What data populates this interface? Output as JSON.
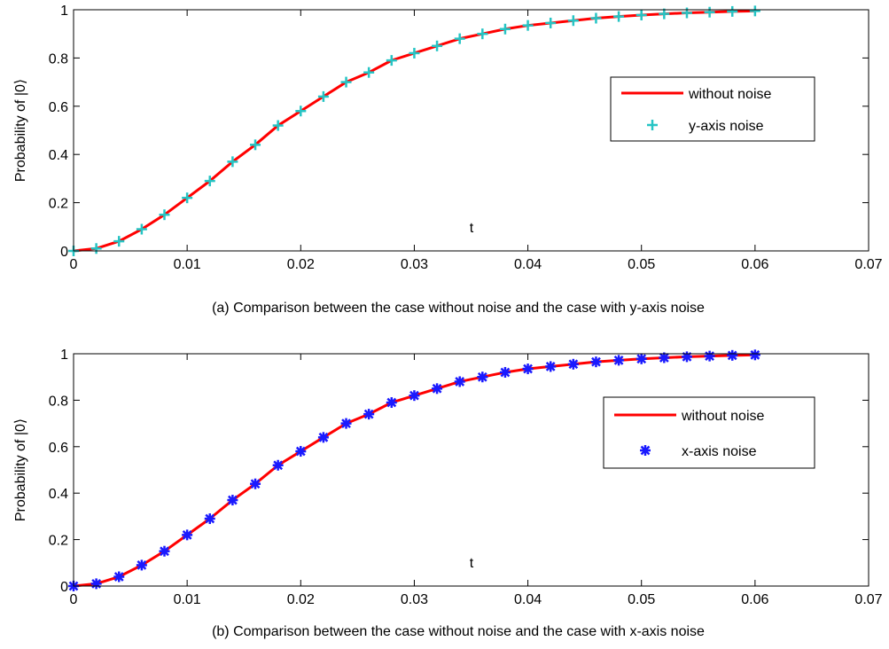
{
  "chart_data": [
    {
      "type": "line",
      "caption": "(a) Comparison between the case without noise and the case with y-axis noise",
      "xlabel": "t",
      "ylabel": "Probability of |0⟩",
      "xlim": [
        0,
        0.07
      ],
      "ylim": [
        0,
        1
      ],
      "x_ticks": [
        "0",
        "0.01",
        "0.02",
        "0.03",
        "0.04",
        "0.05",
        "0.06",
        "0.07"
      ],
      "y_ticks": [
        "0",
        "0.2",
        "0.4",
        "0.6",
        "0.8",
        "1"
      ],
      "grid": false,
      "legend_position": "right",
      "series": [
        {
          "name": "without noise",
          "style": "line",
          "color": "#ff0000",
          "x": [
            0,
            0.002,
            0.004,
            0.006,
            0.008,
            0.01,
            0.012,
            0.014,
            0.016,
            0.018,
            0.02,
            0.022,
            0.024,
            0.026,
            0.028,
            0.03,
            0.032,
            0.034,
            0.036,
            0.038,
            0.04,
            0.042,
            0.044,
            0.046,
            0.048,
            0.05,
            0.052,
            0.054,
            0.056,
            0.058,
            0.06
          ],
          "y": [
            0,
            0.01,
            0.04,
            0.09,
            0.15,
            0.22,
            0.29,
            0.37,
            0.44,
            0.52,
            0.58,
            0.64,
            0.7,
            0.74,
            0.79,
            0.82,
            0.85,
            0.88,
            0.9,
            0.92,
            0.935,
            0.945,
            0.955,
            0.965,
            0.972,
            0.978,
            0.983,
            0.987,
            0.99,
            0.993,
            0.995
          ]
        },
        {
          "name": "y-axis noise",
          "style": "marker-plus",
          "color": "#26c4c4",
          "x": [
            0,
            0.002,
            0.004,
            0.006,
            0.008,
            0.01,
            0.012,
            0.014,
            0.016,
            0.018,
            0.02,
            0.022,
            0.024,
            0.026,
            0.028,
            0.03,
            0.032,
            0.034,
            0.036,
            0.038,
            0.04,
            0.042,
            0.044,
            0.046,
            0.048,
            0.05,
            0.052,
            0.054,
            0.056,
            0.058,
            0.06
          ],
          "y": [
            0,
            0.01,
            0.04,
            0.09,
            0.15,
            0.22,
            0.29,
            0.37,
            0.44,
            0.52,
            0.58,
            0.64,
            0.7,
            0.74,
            0.79,
            0.82,
            0.85,
            0.88,
            0.9,
            0.92,
            0.935,
            0.945,
            0.955,
            0.965,
            0.972,
            0.978,
            0.983,
            0.987,
            0.99,
            0.993,
            0.995
          ]
        }
      ]
    },
    {
      "type": "line",
      "caption": "(b) Comparison between the case without noise and the case with x-axis noise",
      "xlabel": "t",
      "ylabel": "Probability of |0⟩",
      "xlim": [
        0,
        0.07
      ],
      "ylim": [
        0,
        1
      ],
      "x_ticks": [
        "0",
        "0.01",
        "0.02",
        "0.03",
        "0.04",
        "0.05",
        "0.06",
        "0.07"
      ],
      "y_ticks": [
        "0",
        "0.2",
        "0.4",
        "0.6",
        "0.8",
        "1"
      ],
      "grid": false,
      "legend_position": "right",
      "series": [
        {
          "name": "without noise",
          "style": "line",
          "color": "#ff0000",
          "x": [
            0,
            0.002,
            0.004,
            0.006,
            0.008,
            0.01,
            0.012,
            0.014,
            0.016,
            0.018,
            0.02,
            0.022,
            0.024,
            0.026,
            0.028,
            0.03,
            0.032,
            0.034,
            0.036,
            0.038,
            0.04,
            0.042,
            0.044,
            0.046,
            0.048,
            0.05,
            0.052,
            0.054,
            0.056,
            0.058,
            0.06
          ],
          "y": [
            0,
            0.01,
            0.04,
            0.09,
            0.15,
            0.22,
            0.29,
            0.37,
            0.44,
            0.52,
            0.58,
            0.64,
            0.7,
            0.74,
            0.79,
            0.82,
            0.85,
            0.88,
            0.9,
            0.92,
            0.935,
            0.945,
            0.955,
            0.965,
            0.972,
            0.978,
            0.983,
            0.987,
            0.99,
            0.993,
            0.995
          ]
        },
        {
          "name": "x-axis noise",
          "style": "marker-asterisk",
          "color": "#1a1aff",
          "x": [
            0,
            0.002,
            0.004,
            0.006,
            0.008,
            0.01,
            0.012,
            0.014,
            0.016,
            0.018,
            0.02,
            0.022,
            0.024,
            0.026,
            0.028,
            0.03,
            0.032,
            0.034,
            0.036,
            0.038,
            0.04,
            0.042,
            0.044,
            0.046,
            0.048,
            0.05,
            0.052,
            0.054,
            0.056,
            0.058,
            0.06
          ],
          "y": [
            0,
            0.01,
            0.04,
            0.09,
            0.15,
            0.22,
            0.29,
            0.37,
            0.44,
            0.52,
            0.58,
            0.64,
            0.7,
            0.74,
            0.79,
            0.82,
            0.85,
            0.88,
            0.9,
            0.92,
            0.935,
            0.945,
            0.955,
            0.965,
            0.972,
            0.978,
            0.983,
            0.987,
            0.99,
            0.993,
            0.995
          ]
        }
      ]
    }
  ]
}
